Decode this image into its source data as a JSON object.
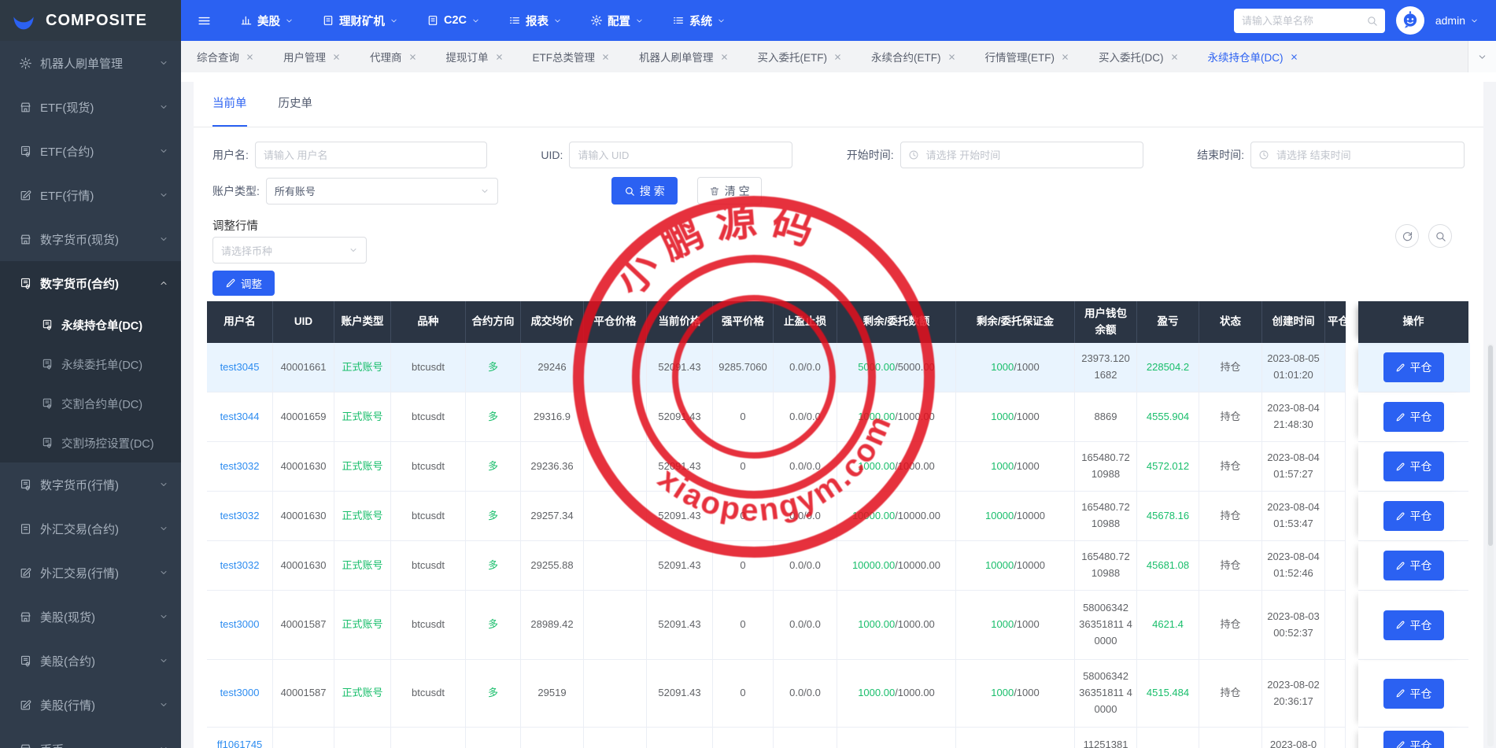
{
  "colors": {
    "primary": "#2b61f2",
    "green": "#19be6b",
    "link": "#2d8cf0",
    "header_bg": "#2b3544",
    "sidebar_bg": "#303c4b",
    "stamp_red": "#e2101e",
    "row_highlight": "#e9f4fe"
  },
  "navbar": {
    "logo_text": "COMPOSITE",
    "menus": [
      {
        "label": "美股",
        "icon": "bars"
      },
      {
        "label": "理财矿机",
        "icon": "doc"
      },
      {
        "label": "C2C",
        "icon": "doc"
      },
      {
        "label": "报表",
        "icon": "list"
      },
      {
        "label": "配置",
        "icon": "gear"
      },
      {
        "label": "系统",
        "icon": "list"
      }
    ],
    "search_placeholder": "请输入菜单名称",
    "user": "admin"
  },
  "tabs": [
    {
      "label": "综合查询",
      "active": false
    },
    {
      "label": "用户管理",
      "active": false
    },
    {
      "label": "代理商",
      "active": false
    },
    {
      "label": "提现订单",
      "active": false
    },
    {
      "label": "ETF总类管理",
      "active": false
    },
    {
      "label": "机器人刷单管理",
      "active": false
    },
    {
      "label": "买入委托(ETF)",
      "active": false
    },
    {
      "label": "永续合约(ETF)",
      "active": false
    },
    {
      "label": "行情管理(ETF)",
      "active": false
    },
    {
      "label": "买入委托(DC)",
      "active": false
    },
    {
      "label": "永续持仓单(DC)",
      "active": true
    }
  ],
  "sidebar": {
    "items": [
      {
        "label": "机器人刷单管理",
        "icon": "gear"
      },
      {
        "label": "ETF(现货)",
        "icon": "shop"
      },
      {
        "label": "ETF(合约)",
        "icon": "sql"
      },
      {
        "label": "ETF(行情)",
        "icon": "edit"
      },
      {
        "label": "数字货币(现货)",
        "icon": "shop"
      },
      {
        "label": "数字货币(合约)",
        "icon": "sql",
        "expanded": true,
        "children": [
          {
            "label": "永续持仓单(DC)",
            "active": true
          },
          {
            "label": "永续委托单(DC)",
            "active": false
          },
          {
            "label": "交割合约单(DC)",
            "active": false
          },
          {
            "label": "交割场控设置(DC)",
            "active": false
          }
        ]
      },
      {
        "label": "数字货币(行情)",
        "icon": "sql"
      },
      {
        "label": "外汇交易(合约)",
        "icon": "doc"
      },
      {
        "label": "外汇交易(行情)",
        "icon": "edit"
      },
      {
        "label": "美股(现货)",
        "icon": "shop"
      },
      {
        "label": "美股(合约)",
        "icon": "sql"
      },
      {
        "label": "美股(行情)",
        "icon": "edit"
      },
      {
        "label": "币币",
        "icon": "shop"
      }
    ]
  },
  "content": {
    "tabs": [
      {
        "label": "当前单",
        "active": true
      },
      {
        "label": "历史单",
        "active": false
      }
    ],
    "filters": {
      "username_label": "用户名:",
      "username_placeholder": "请输入 用户名",
      "uid_label": "UID:",
      "uid_placeholder": "请输入 UID",
      "start_label": "开始时间:",
      "start_placeholder": "请选择 开始时间",
      "end_label": "结束时间:",
      "end_placeholder": "请选择 结束时间",
      "account_label": "账户类型:",
      "account_value": "所有账号",
      "search_button": "搜 索",
      "clear_button": "清 空"
    },
    "adjust": {
      "title": "调整行情",
      "coin_placeholder": "请选择币种",
      "button": "调整"
    },
    "toolbar_icons": [
      "refresh",
      "search"
    ]
  },
  "table": {
    "headers": [
      "用户名",
      "UID",
      "账户类型",
      "品种",
      "合约方向",
      "成交均价",
      "平仓价格",
      "当前价格",
      "强平价格",
      "止盈止损",
      "剩余/委托数额",
      "剩余/委托保证金",
      "用户钱包余额",
      "盈亏",
      "状态",
      "创建时间",
      "平仓时间",
      "操作"
    ],
    "close_button": "平仓",
    "rows": [
      {
        "username": "test3045",
        "uid": "40001661",
        "acct_type": "正式账号",
        "symbol": "btcusdt",
        "direction": "多",
        "avg_price": "29246",
        "close_price": "",
        "cur_price": "52091.43",
        "liq_price": "9285.7060",
        "tp_sl": "0.0/0.0",
        "qty": [
          "5000.00",
          "5000.00"
        ],
        "margin": [
          "1000",
          "1000"
        ],
        "wallet": "23973.120 1682",
        "pnl": "228504.2",
        "status": "持仓",
        "created": "2023-08-05 01:01:20",
        "highlight": true
      },
      {
        "username": "test3044",
        "uid": "40001659",
        "acct_type": "正式账号",
        "symbol": "btcusdt",
        "direction": "多",
        "avg_price": "29316.9",
        "close_price": "",
        "cur_price": "52091.43",
        "liq_price": "0",
        "tp_sl": "0.0/0.0",
        "qty": [
          "1000.00",
          "1000.00"
        ],
        "margin": [
          "1000",
          "1000"
        ],
        "wallet": "8869",
        "pnl": "4555.904",
        "status": "持仓",
        "created": "2023-08-04 21:48:30"
      },
      {
        "username": "test3032",
        "uid": "40001630",
        "acct_type": "正式账号",
        "symbol": "btcusdt",
        "direction": "多",
        "avg_price": "29236.36",
        "close_price": "",
        "cur_price": "52091.43",
        "liq_price": "0",
        "tp_sl": "0.0/0.0",
        "qty": [
          "1000.00",
          "1000.00"
        ],
        "margin": [
          "1000",
          "1000"
        ],
        "wallet": "165480.72 10988",
        "pnl": "4572.012",
        "status": "持仓",
        "created": "2023-08-04 01:57:27"
      },
      {
        "username": "test3032",
        "uid": "40001630",
        "acct_type": "正式账号",
        "symbol": "btcusdt",
        "direction": "多",
        "avg_price": "29257.34",
        "close_price": "",
        "cur_price": "52091.43",
        "liq_price": "0",
        "tp_sl": "0.0/0.0",
        "qty": [
          "10000.00",
          "10000.00"
        ],
        "margin": [
          "10000",
          "10000"
        ],
        "wallet": "165480.72 10988",
        "pnl": "45678.16",
        "status": "持仓",
        "created": "2023-08-04 01:53:47"
      },
      {
        "username": "test3032",
        "uid": "40001630",
        "acct_type": "正式账号",
        "symbol": "btcusdt",
        "direction": "多",
        "avg_price": "29255.88",
        "close_price": "",
        "cur_price": "52091.43",
        "liq_price": "0",
        "tp_sl": "0.0/0.0",
        "qty": [
          "10000.00",
          "10000.00"
        ],
        "margin": [
          "10000",
          "10000"
        ],
        "wallet": "165480.72 10988",
        "pnl": "45681.08",
        "status": "持仓",
        "created": "2023-08-04 01:52:46"
      },
      {
        "username": "test3000",
        "uid": "40001587",
        "acct_type": "正式账号",
        "symbol": "btcusdt",
        "direction": "多",
        "avg_price": "28989.42",
        "close_price": "",
        "cur_price": "52091.43",
        "liq_price": "0",
        "tp_sl": "0.0/0.0",
        "qty": [
          "1000.00",
          "1000.00"
        ],
        "margin": [
          "1000",
          "1000"
        ],
        "wallet": "58006342 36351811 40000",
        "pnl": "4621.4",
        "status": "持仓",
        "created": "2023-08-03 00:52:37"
      },
      {
        "username": "test3000",
        "uid": "40001587",
        "acct_type": "正式账号",
        "symbol": "btcusdt",
        "direction": "多",
        "avg_price": "29519",
        "close_price": "",
        "cur_price": "52091.43",
        "liq_price": "0",
        "tp_sl": "0.0/0.0",
        "qty": [
          "1000.00",
          "1000.00"
        ],
        "margin": [
          "1000",
          "1000"
        ],
        "wallet": "58006342 36351811 40000",
        "pnl": "4515.484",
        "status": "持仓",
        "created": "2023-08-02 20:36:17"
      },
      {
        "username": "ff1061745",
        "uid": "",
        "acct_type": "",
        "symbol": "",
        "direction": "",
        "avg_price": "",
        "close_price": "",
        "cur_price": "",
        "liq_price": "",
        "tp_sl": "",
        "qty": null,
        "margin": null,
        "wallet": "11251381",
        "pnl": "",
        "status": "",
        "created": "2023-08-0",
        "partial": true
      }
    ]
  },
  "watermark": {
    "line1": "小鹏源码",
    "line2": "xiaopengym.com"
  }
}
